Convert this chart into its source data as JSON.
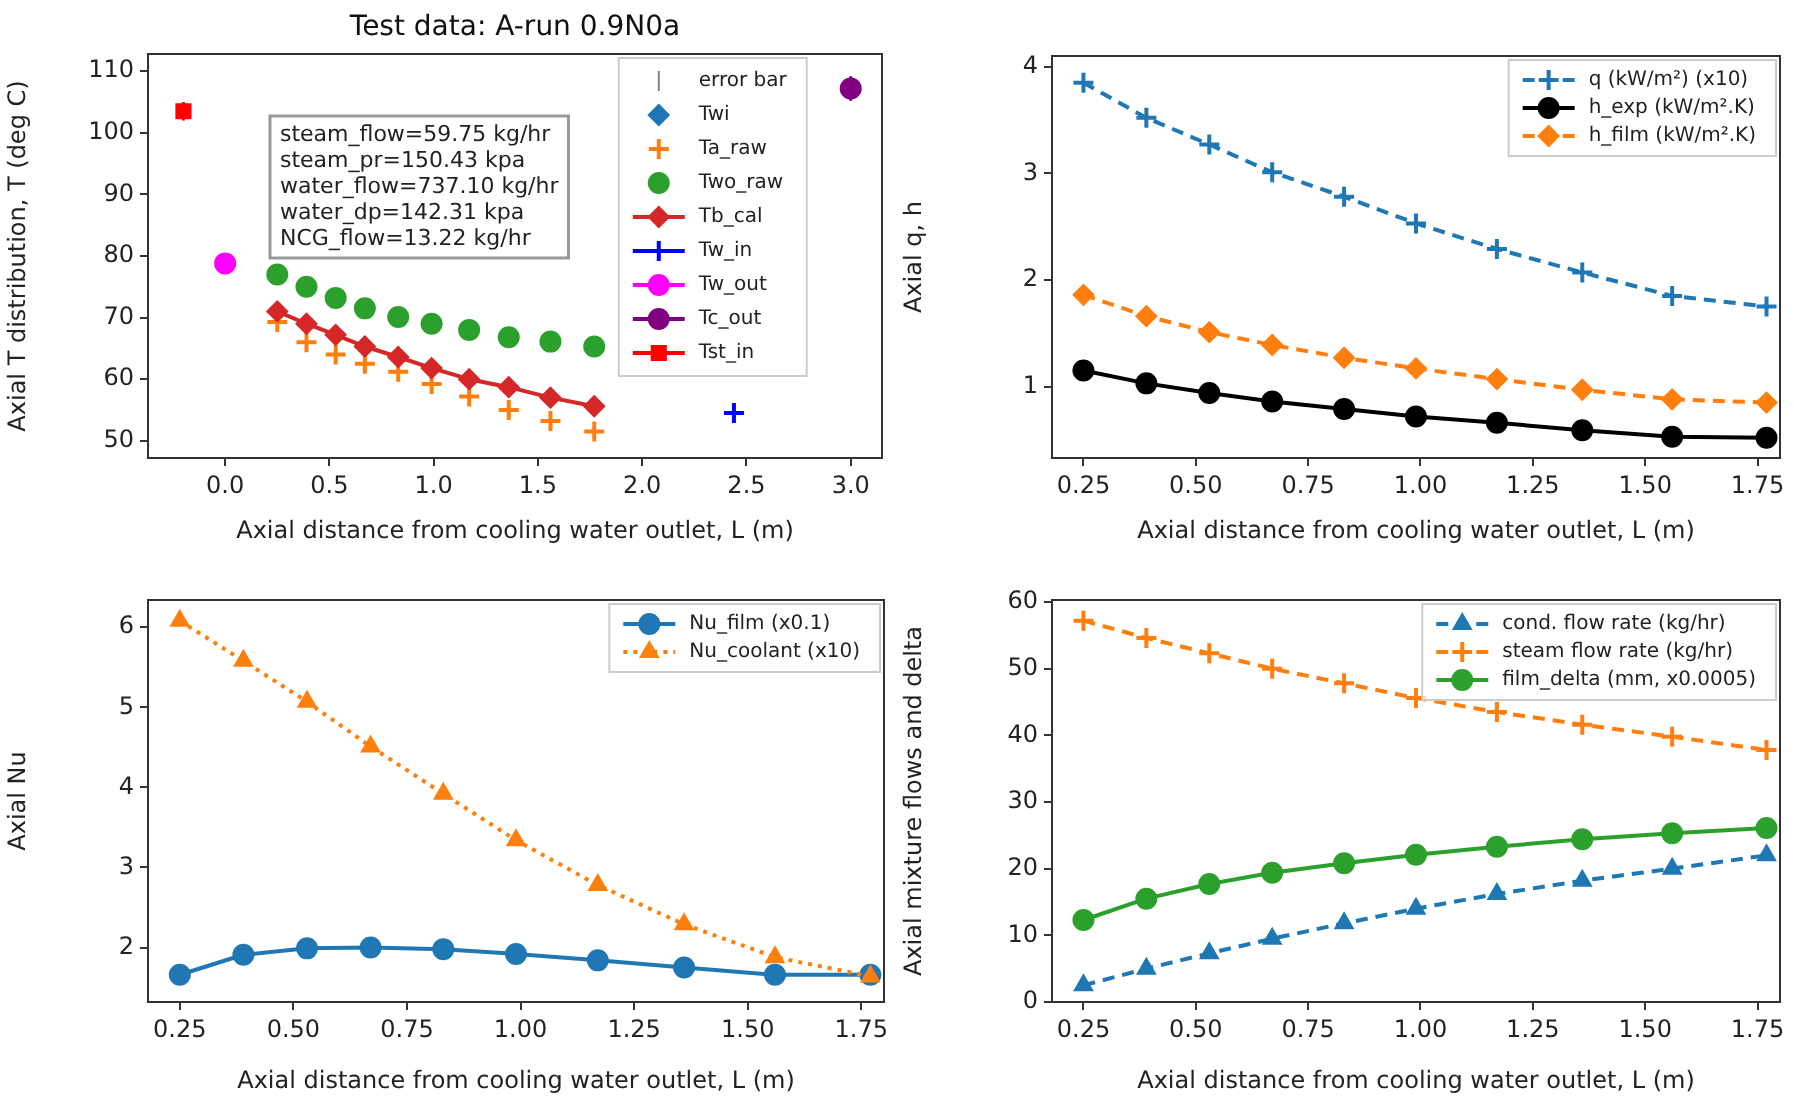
{
  "chart_data": [
    {
      "type": "scatter",
      "title": "Test data: A-run 0.9N0a",
      "xlabel": "Axial distance from cooling water outlet, L (m)",
      "ylabel": "Axial T distribution, T (deg C)",
      "xlim": [
        -0.37,
        3.15
      ],
      "ylim": [
        47.2,
        112.8
      ],
      "xticks": [
        {
          "value": 0,
          "label": "0.0"
        },
        0.5,
        {
          "value": 1,
          "label": "1.0"
        },
        1.5,
        {
          "value": 2,
          "label": "2.0"
        },
        2.5,
        {
          "value": 3,
          "label": "3.0"
        }
      ],
      "yticks": [
        50,
        60,
        70,
        80,
        90,
        100,
        110
      ],
      "legend": "top right",
      "annotations": [
        "steam_flow=59.75 kg/hr",
        "steam_pr=150.43 kpa",
        "water_flow=737.10 kg/hr",
        "water_dp=142.31 kpa",
        "NCG_flow=13.22 kg/hr"
      ],
      "series": [
        {
          "name": "error bar",
          "color": "#7f7f7f",
          "marker": "none"
        },
        {
          "name": "Twi",
          "color": "#1f77b4",
          "marker": "diamond"
        },
        {
          "name": "Ta_raw",
          "color": "#ff7f0e",
          "marker": "cross",
          "x": [
            0.25,
            0.39,
            0.53,
            0.67,
            0.83,
            0.99,
            1.17,
            1.36,
            1.56,
            1.77
          ],
          "values": [
            69.3,
            66,
            64,
            62.5,
            61.2,
            59.2,
            57.2,
            55,
            53.2,
            51.5
          ]
        },
        {
          "name": "Two_raw",
          "color": "#2ca02c",
          "marker": "circle",
          "x": [
            0.25,
            0.39,
            0.53,
            0.67,
            0.83,
            0.99,
            1.17,
            1.36,
            1.56,
            1.77
          ],
          "values": [
            77,
            75,
            73.2,
            71.5,
            70.1,
            69,
            68,
            66.8,
            66.1,
            65.3
          ]
        },
        {
          "name": "Tb_cal",
          "type": "line",
          "color": "#d62728",
          "marker": "diamond",
          "x": [
            0.25,
            0.39,
            0.53,
            0.67,
            0.83,
            0.99,
            1.17,
            1.36,
            1.56,
            1.77
          ],
          "values": [
            71,
            69,
            67.2,
            65.3,
            63.6,
            61.8,
            60,
            58.7,
            57,
            55.6
          ]
        },
        {
          "name": "Tw_in",
          "type": "line",
          "color": "#0000ff",
          "marker": "cross",
          "x": [
            2.44
          ],
          "values": [
            54.5
          ]
        },
        {
          "name": "Tw_out",
          "type": "line",
          "color": "#ff00ff",
          "marker": "circle",
          "x": [
            0
          ],
          "values": [
            78.8
          ],
          "errors": [
            1.5
          ]
        },
        {
          "name": "Tc_out",
          "type": "line",
          "color": "#800080",
          "marker": "circle",
          "x": [
            3
          ],
          "values": [
            107.2
          ],
          "errors": [
            2
          ]
        },
        {
          "name": "Tst_in",
          "type": "line",
          "color": "#ff0000",
          "marker": "square",
          "x": [
            -0.2
          ],
          "values": [
            103.5
          ],
          "errors": [
            1.5
          ]
        }
      ]
    },
    {
      "type": "line",
      "xlabel": "Axial distance from cooling water outlet, L (m)",
      "ylabel": "Axial q, h",
      "xlim": [
        0.18,
        1.8
      ],
      "ylim": [
        0.33,
        4.1
      ],
      "xticks": [
        0.25,
        {
          "value": 0.5,
          "label": "0.50"
        },
        0.75,
        {
          "value": 1,
          "label": "1.00"
        },
        1.25,
        {
          "value": 1.5,
          "label": "1.50"
        },
        1.75
      ],
      "yticks": [
        1,
        2,
        3,
        4
      ],
      "legend": "top right",
      "x": [
        0.25,
        0.39,
        0.53,
        0.67,
        0.83,
        0.99,
        1.17,
        1.36,
        1.56,
        1.77
      ],
      "series": [
        {
          "name": "q (kW/m²) (x10)",
          "color": "#1f77b4",
          "marker": "cross",
          "line_style": "dashed",
          "values": [
            3.85,
            3.52,
            3.27,
            3.01,
            2.78,
            2.53,
            2.29,
            2.07,
            1.85,
            1.75
          ]
        },
        {
          "name": "h_exp (kW/m².K)",
          "color": "#000000",
          "marker": "circle",
          "line_style": "solid",
          "values": [
            1.15,
            1.03,
            0.94,
            0.86,
            0.79,
            0.72,
            0.66,
            0.59,
            0.53,
            0.52
          ]
        },
        {
          "name": "h_film (kW/m².K)",
          "color": "#ff7f0e",
          "marker": "diamond",
          "line_style": "dashed",
          "values": [
            1.86,
            1.66,
            1.51,
            1.39,
            1.27,
            1.17,
            1.07,
            0.97,
            0.88,
            0.85
          ]
        }
      ]
    },
    {
      "type": "line",
      "xlabel": "Axial distance from cooling water outlet, L (m)",
      "ylabel": "Axial Nu",
      "xlim": [
        0.18,
        1.8
      ],
      "ylim": [
        1.32,
        6.34
      ],
      "xticks": [
        0.25,
        {
          "value": 0.5,
          "label": "0.50"
        },
        0.75,
        {
          "value": 1,
          "label": "1.00"
        },
        1.25,
        {
          "value": 1.5,
          "label": "1.50"
        },
        1.75
      ],
      "yticks": [
        2,
        3,
        4,
        5,
        6
      ],
      "legend": "top right",
      "x": [
        0.25,
        0.39,
        0.53,
        0.67,
        0.83,
        0.99,
        1.17,
        1.36,
        1.56,
        1.77
      ],
      "series": [
        {
          "name": "Nu_film (x0.1)",
          "color": "#1f77b4",
          "marker": "circle",
          "line_style": "solid",
          "values": [
            1.66,
            1.91,
            1.99,
            2.0,
            1.98,
            1.92,
            1.84,
            1.75,
            1.66,
            1.66
          ]
        },
        {
          "name": "Nu_coolant (x10)",
          "color": "#ff7f0e",
          "marker": "triangle",
          "line_style": "dotted",
          "values": [
            6.08,
            5.58,
            5.07,
            4.51,
            3.92,
            3.34,
            2.78,
            2.29,
            1.88,
            1.64
          ]
        }
      ]
    },
    {
      "type": "line",
      "xlabel": "Axial distance from cooling water outlet, L (m)",
      "ylabel": "Axial mixture flows and delta",
      "xlim": [
        0.18,
        1.8
      ],
      "ylim": [
        0,
        60.3
      ],
      "xticks": [
        0.25,
        {
          "value": 0.5,
          "label": "0.50"
        },
        0.75,
        {
          "value": 1,
          "label": "1.00"
        },
        1.25,
        {
          "value": 1.5,
          "label": "1.50"
        },
        1.75
      ],
      "yticks": [
        0,
        10,
        20,
        30,
        40,
        50,
        60
      ],
      "legend": "top right",
      "x": [
        0.25,
        0.39,
        0.53,
        0.67,
        0.83,
        0.99,
        1.17,
        1.36,
        1.56,
        1.77
      ],
      "series": [
        {
          "name": "cond. flow rate (kg/hr)",
          "color": "#1f77b4",
          "marker": "triangle",
          "line_style": "dashed",
          "values": [
            2.5,
            5.0,
            7.3,
            9.5,
            11.8,
            14.0,
            16.2,
            18.2,
            20.0,
            22.0
          ]
        },
        {
          "name": "steam flow rate (kg/hr)",
          "color": "#ff7f0e",
          "marker": "cross",
          "line_style": "dashed",
          "values": [
            57.2,
            54.6,
            52.3,
            50.0,
            47.8,
            45.6,
            43.5,
            41.6,
            39.8,
            37.8
          ]
        },
        {
          "name": "film_delta (mm, x0.0005)",
          "color": "#2ca02c",
          "marker": "circle",
          "line_style": "solid",
          "values": [
            12.3,
            15.5,
            17.7,
            19.4,
            20.8,
            22.1,
            23.3,
            24.4,
            25.3,
            26.1
          ]
        }
      ]
    }
  ]
}
